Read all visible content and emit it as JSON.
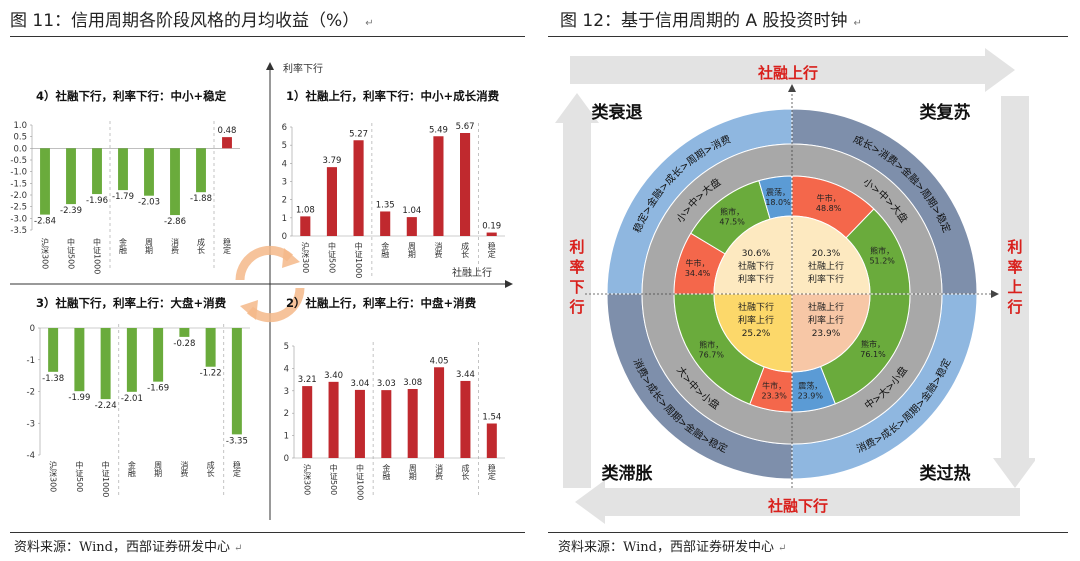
{
  "left": {
    "title": "图 11：信用周期各阶段风格的月均收益（%）",
    "source": "资料来源：Wind，西部证券研发中心",
    "axis_y_label": "利率下行",
    "axis_x_label": "社融上行"
  },
  "right": {
    "title": "图 12：基于信用周期的 A 股投资时钟",
    "source": "资料来源：Wind，西部证券研发中心",
    "arrow_top": "社融上行",
    "arrow_bottom": "社融下行",
    "arrow_left": [
      "利",
      "率",
      "下",
      "行"
    ],
    "arrow_right": [
      "利",
      "率",
      "上",
      "行"
    ],
    "corners": {
      "tl": "类衰退",
      "tr": "类复苏",
      "bl": "类滞胀",
      "br": "类过热"
    },
    "outer_ring": {
      "tl": "稳定>金融>成长>周期>消费",
      "tr": "成长>消费>金融>周期>稳定",
      "bl": "消费>成长>周期>金融>稳定",
      "br": "消费>成长>周期>金融>稳定"
    },
    "mid_ring": {
      "tl": "小>中>大盘",
      "tr": "小>中>大盘",
      "bl": "大>中>小盘",
      "br": "中>大>小盘"
    },
    "market_ring": {
      "tl": [
        {
          "label": "震荡，",
          "value": "18.0%"
        },
        {
          "label": "熊市，",
          "value": "47.5%"
        },
        {
          "label": "牛市，",
          "value": "34.4%"
        }
      ],
      "tr": [
        {
          "label": "牛市，",
          "value": "48.8%"
        },
        {
          "label": "熊市，",
          "value": "51.2%"
        }
      ],
      "bl": [
        {
          "label": "熊市，",
          "value": "76.7%"
        },
        {
          "label": "牛市，",
          "value": "23.3%"
        }
      ],
      "br": [
        {
          "label": "熊市，",
          "value": "76.1%"
        },
        {
          "label": "震荡，",
          "value": "23.9%"
        }
      ]
    },
    "center": {
      "tl": [
        "30.6%",
        "社融下行",
        "利率下行"
      ],
      "tr": [
        "20.3%",
        "社融上行",
        "利率下行"
      ],
      "bl": [
        "社融下行",
        "利率上行",
        "25.2%"
      ],
      "br": [
        "社融上行",
        "利率上行",
        "23.9%"
      ]
    },
    "colors": {
      "arrow": "#e3e3e3",
      "label_red": "#d9201c",
      "outer_blue": "#8fb7e0",
      "outer_slate": "#7e8fab",
      "mid_gray": "#a8a8a8",
      "bull": "#f4674b",
      "bear": "#6aab3c",
      "osc": "#5b9bd5",
      "center_cream": "#fde9c0",
      "center_yellow": "#fcd86a",
      "center_peach": "#f7c7a6"
    }
  },
  "chart_data": [
    {
      "type": "bar",
      "title": "1）社融上行，利率下行：中小+成长消费",
      "categories": [
        "沪深300",
        "中证500",
        "中证1000",
        "金融",
        "周期",
        "消费",
        "成长",
        "稳定"
      ],
      "values": [
        1.08,
        3.79,
        5.27,
        1.35,
        1.04,
        5.49,
        5.67,
        0.19
      ],
      "ylim": [
        0,
        6
      ],
      "yticks": [
        0,
        1,
        2,
        3,
        4,
        5,
        6
      ]
    },
    {
      "type": "bar",
      "title": "4）社融下行，利率下行：中小+稳定",
      "categories": [
        "沪深300",
        "中证500",
        "中证1000",
        "金融",
        "周期",
        "消费",
        "成长",
        "稳定"
      ],
      "values": [
        -2.84,
        -2.39,
        -1.96,
        -1.79,
        -2.03,
        -2.86,
        -1.88,
        0.48
      ],
      "ylim": [
        -3.5,
        1
      ],
      "yticks": [
        1,
        0.5,
        0,
        -0.5,
        -1,
        -1.5,
        -2,
        -2.5,
        -3,
        -3.5
      ]
    },
    {
      "type": "bar",
      "title": "3）社融下行，利率上行：大盘+消费",
      "categories": [
        "沪深300",
        "中证500",
        "中证1000",
        "金融",
        "周期",
        "消费",
        "成长",
        "稳定"
      ],
      "values": [
        -1.38,
        -1.99,
        -2.24,
        -2.01,
        -1.69,
        -0.28,
        -1.22,
        -3.35
      ],
      "ylim": [
        -4,
        0
      ],
      "yticks": [
        0,
        -1,
        -2,
        -3,
        -4
      ]
    },
    {
      "type": "bar",
      "title": "2）社融上行，利率上行：中盘+消费",
      "categories": [
        "沪深300",
        "中证500",
        "中证1000",
        "金融",
        "周期",
        "消费",
        "成长",
        "稳定"
      ],
      "values": [
        3.21,
        3.4,
        3.04,
        3.03,
        3.08,
        4.05,
        3.44,
        1.54
      ],
      "ylim": [
        0,
        5
      ],
      "yticks": [
        0,
        1,
        2,
        3,
        4,
        5
      ]
    },
    {
      "type": "pie",
      "title": "基于信用周期的 A 股投资时钟",
      "series": [
        {
          "name": "社融下行利率下行",
          "values": [
            {
              "label": "熊市",
              "value": 47.5
            },
            {
              "label": "牛市",
              "value": 34.4
            },
            {
              "label": "震荡",
              "value": 18.0
            }
          ]
        },
        {
          "name": "社融上行利率下行",
          "values": [
            {
              "label": "牛市",
              "value": 48.8
            },
            {
              "label": "熊市",
              "value": 51.2
            }
          ]
        },
        {
          "name": "社融下行利率上行",
          "values": [
            {
              "label": "熊市",
              "value": 76.7
            },
            {
              "label": "牛市",
              "value": 23.3
            }
          ]
        },
        {
          "name": "社融上行利率上行",
          "values": [
            {
              "label": "熊市",
              "value": 76.1
            },
            {
              "label": "震荡",
              "value": 23.9
            }
          ]
        }
      ],
      "center_values": [
        30.6,
        20.3,
        25.2,
        23.9
      ]
    }
  ]
}
